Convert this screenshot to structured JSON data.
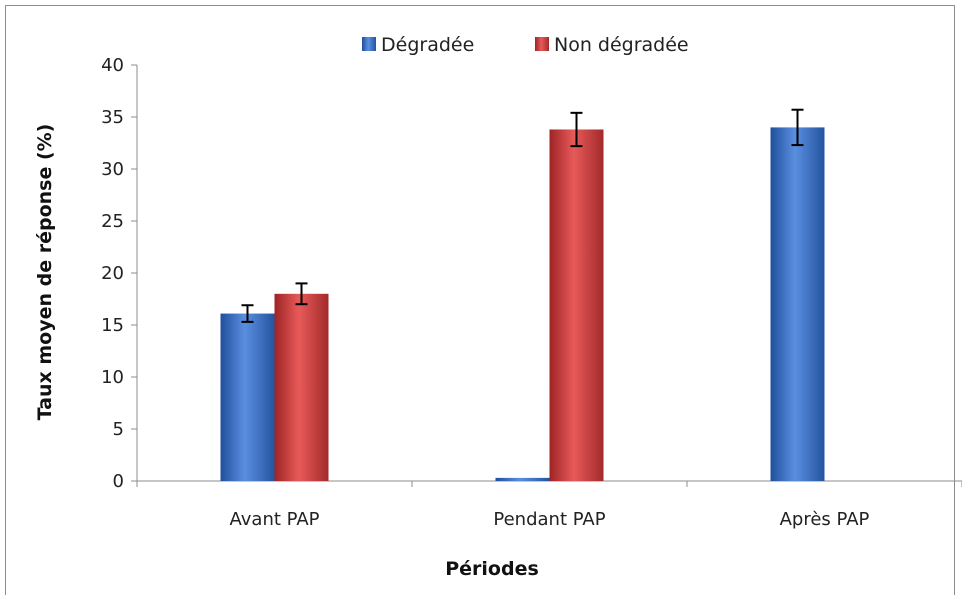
{
  "chart_data": {
    "type": "bar",
    "title": "",
    "xlabel": "Périodes",
    "ylabel": "Taux moyen de réponse (%)",
    "categories": [
      "Avant PAP",
      "Pendant  PAP",
      "Après PAP"
    ],
    "ylim": [
      0,
      40
    ],
    "yticks": [
      0,
      5,
      10,
      15,
      20,
      25,
      30,
      35,
      40
    ],
    "grid": false,
    "legend_position": "top",
    "series": [
      {
        "name": "Dégradée",
        "color": "#3a6fc2",
        "values": [
          16.1,
          0.3,
          34.0
        ],
        "error": [
          0.8,
          null,
          1.7
        ]
      },
      {
        "name": "Non dégradée",
        "color": "#c83b3b",
        "values": [
          18.0,
          33.8,
          null
        ],
        "error": [
          1.0,
          1.6,
          null
        ]
      }
    ]
  }
}
